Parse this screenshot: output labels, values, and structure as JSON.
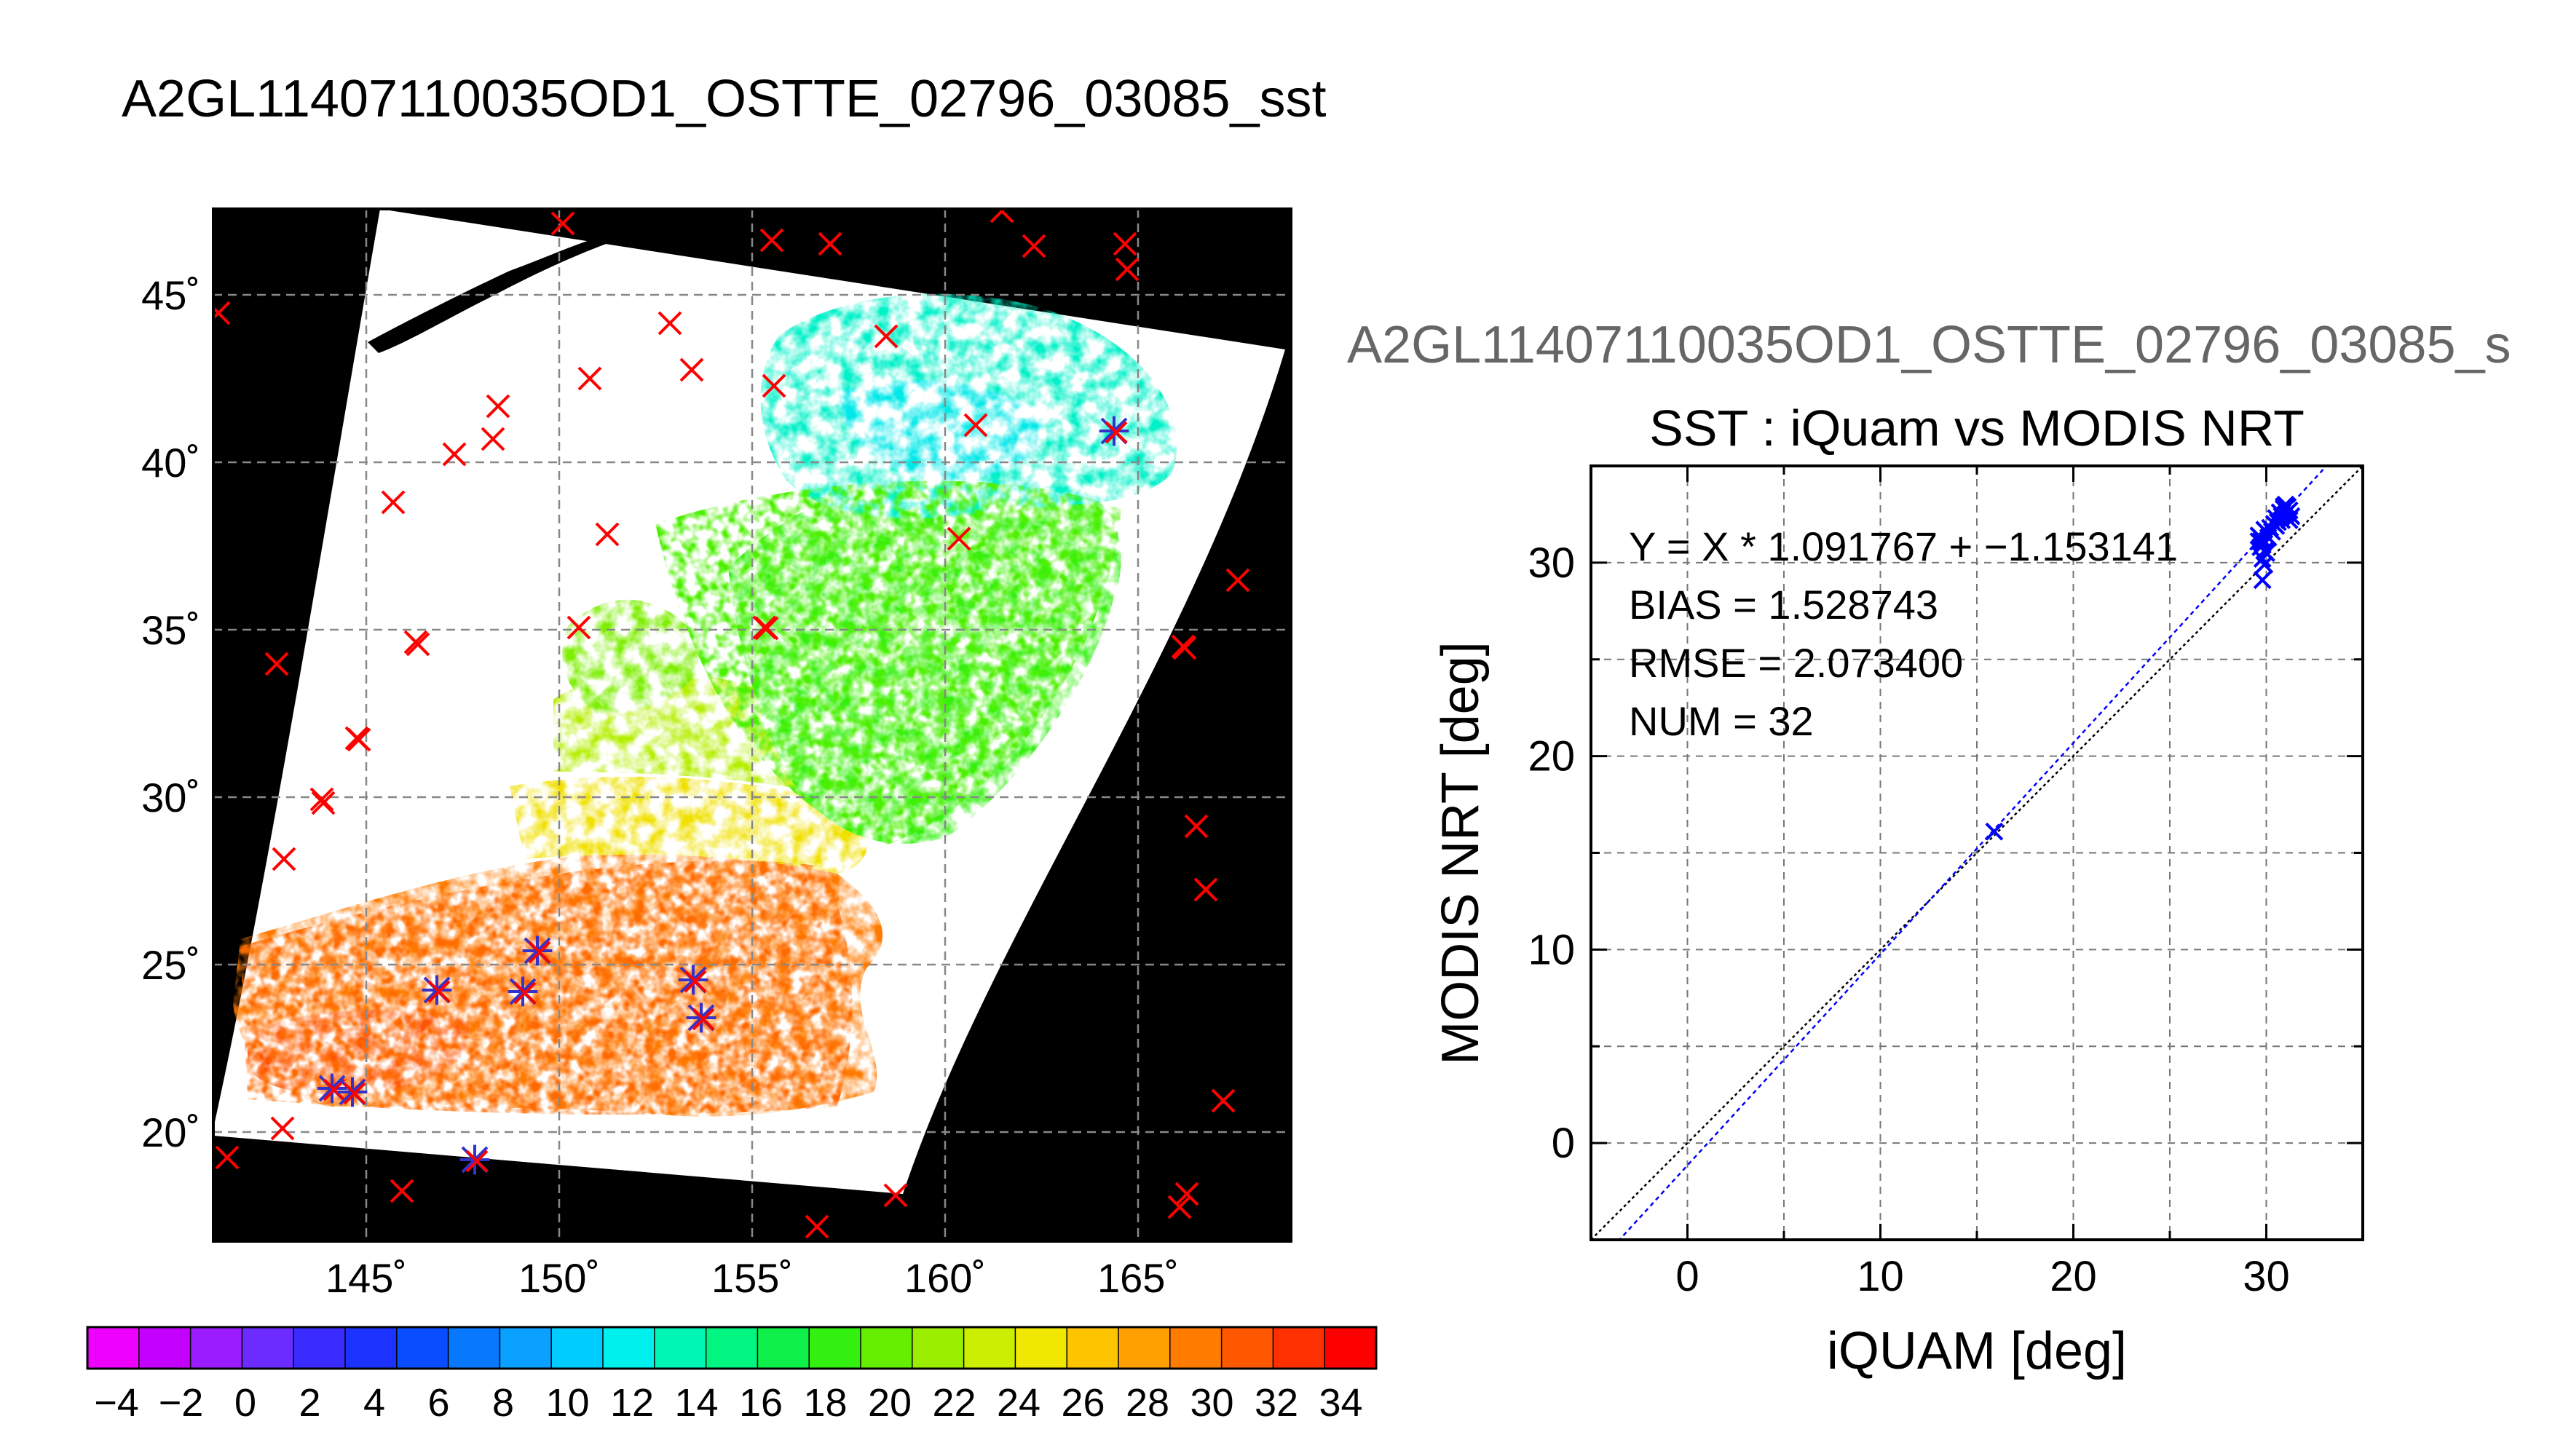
{
  "page_title": "A2GL11407110035OD1_OSTTE_02796_03085_sst",
  "map": {
    "lon_ticks": [
      "145˚",
      "150˚",
      "155˚",
      "160˚",
      "165˚"
    ],
    "lat_ticks": [
      "20˚",
      "25˚",
      "30˚",
      "35˚",
      "40˚",
      "45˚"
    ],
    "colors": {
      "frame": "#000000",
      "grid": "#888888",
      "swath_bg": "#ffffff",
      "outside_marker": "#ff0000",
      "matchup_marker": "#3333cc"
    }
  },
  "colorbar": {
    "tick_labels": [
      "−4",
      "−2",
      "0",
      "2",
      "4",
      "6",
      "8",
      "10",
      "12",
      "14",
      "16",
      "18",
      "20",
      "22",
      "24",
      "26",
      "28",
      "30",
      "32",
      "34"
    ],
    "colors": [
      "#ee00ff",
      "#c400ff",
      "#9a1cff",
      "#6c2cff",
      "#3a2cff",
      "#1c32ff",
      "#0a4cff",
      "#0878ff",
      "#0aa0ff",
      "#00ccff",
      "#00f0ee",
      "#00f6b4",
      "#00f680",
      "#10f04a",
      "#34f010",
      "#66ee00",
      "#9cee00",
      "#ccee00",
      "#f0e800",
      "#ffc400",
      "#ffa000",
      "#ff7c00",
      "#ff5800",
      "#ff3000",
      "#ff0000"
    ]
  },
  "scatter_title_gray": "A2GL11407110035OD1_OSTTE_02796_03085_s",
  "chart_data": [
    {
      "type": "scatter",
      "title": "SST : iQuam vs MODIS NRT",
      "xlabel": "iQUAM [deg]",
      "ylabel": "MODIS NRT [deg]",
      "xlim": [
        -5,
        35
      ],
      "ylim": [
        -5,
        35
      ],
      "x_ticks": [
        "0",
        "10",
        "20",
        "30"
      ],
      "y_ticks": [
        "0",
        "10",
        "20",
        "30"
      ],
      "grid": true,
      "stats": [
        "Y = X * 1.091767 + −1.153141",
        "BIAS = 1.528743",
        "RMSE = 2.073400",
        "NUM = 32"
      ],
      "fit": {
        "slope": 1.091767,
        "intercept": -1.153141,
        "color": "#0000ff"
      },
      "identity_line": {
        "color": "#000000"
      },
      "point_color": "#0000ff",
      "points": [
        [
          15.9,
          16.1
        ],
        [
          29.6,
          31.4
        ],
        [
          29.7,
          31.1
        ],
        [
          29.8,
          30.9
        ],
        [
          29.9,
          30.6
        ],
        [
          29.8,
          30.2
        ],
        [
          29.9,
          29.9
        ],
        [
          29.8,
          29.1
        ],
        [
          29.6,
          31.1
        ],
        [
          29.7,
          31.3
        ],
        [
          29.8,
          31.0
        ],
        [
          30.0,
          30.5
        ],
        [
          30.1,
          31.3
        ],
        [
          30.2,
          31.8
        ],
        [
          30.4,
          32.0
        ],
        [
          30.5,
          32.3
        ],
        [
          30.6,
          32.1
        ],
        [
          30.7,
          32.6
        ],
        [
          30.8,
          32.4
        ],
        [
          30.9,
          32.8
        ],
        [
          31.0,
          32.5
        ],
        [
          31.1,
          32.9
        ],
        [
          31.2,
          32.7
        ],
        [
          31.3,
          32.4
        ],
        [
          30.8,
          32.2
        ],
        [
          30.9,
          32.9
        ],
        [
          31.0,
          33.0
        ],
        [
          30.5,
          31.9
        ],
        [
          30.3,
          31.6
        ],
        [
          29.7,
          30.8
        ],
        [
          29.9,
          31.7
        ],
        [
          31.2,
          32.2
        ]
      ]
    }
  ]
}
